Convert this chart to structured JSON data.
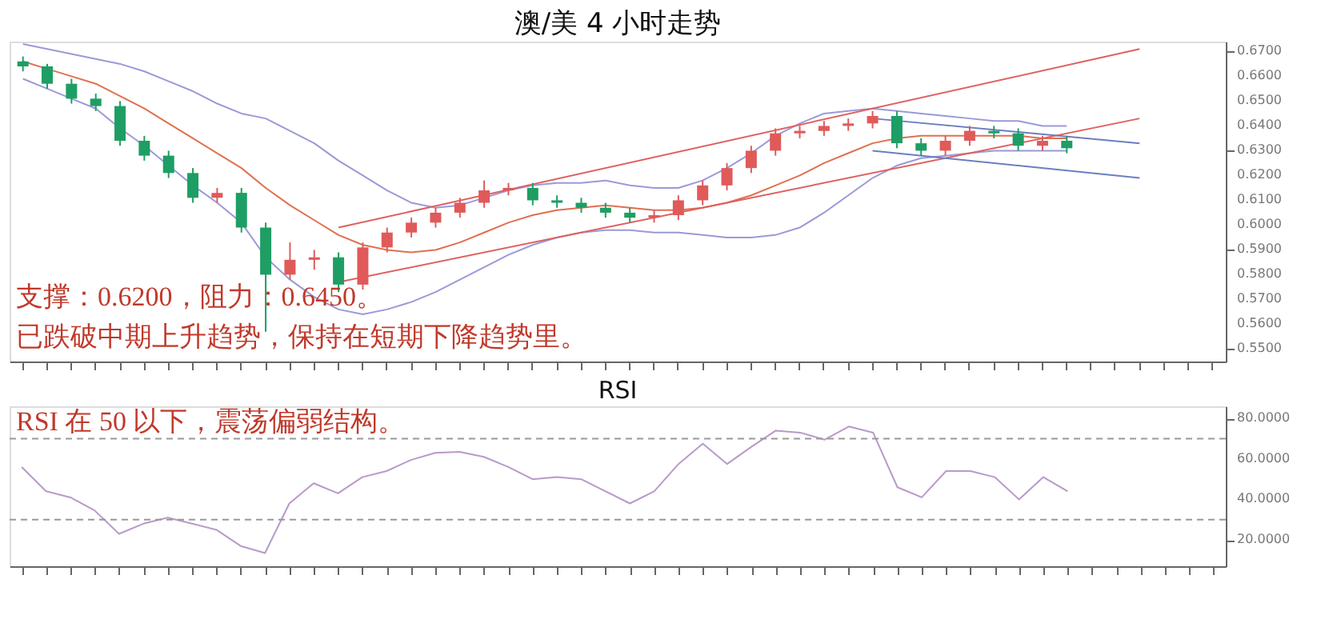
{
  "chart_data": [
    {
      "type": "candlestick",
      "title": "澳/美 4 小时走势",
      "categories": [
        null,
        null,
        null,
        null,
        null,
        null,
        null,
        null,
        null,
        null,
        null,
        null,
        null,
        null,
        null,
        null,
        null,
        null,
        null,
        null,
        null,
        null,
        null,
        null,
        null,
        null,
        null,
        null,
        null,
        null,
        null,
        null,
        null,
        null,
        null,
        null,
        null,
        null,
        null,
        null,
        null,
        null,
        null,
        null,
        null,
        null,
        null,
        null,
        null,
        null
      ],
      "ohlc": [
        [
          0.666,
          0.668,
          0.662,
          0.664
        ],
        [
          0.664,
          0.665,
          0.655,
          0.657
        ],
        [
          0.657,
          0.659,
          0.649,
          0.651
        ],
        [
          0.651,
          0.653,
          0.646,
          0.648
        ],
        [
          0.648,
          0.65,
          0.632,
          0.634
        ],
        [
          0.634,
          0.636,
          0.626,
          0.628
        ],
        [
          0.628,
          0.63,
          0.619,
          0.621
        ],
        [
          0.621,
          0.623,
          0.609,
          0.611
        ],
        [
          0.611,
          0.615,
          0.609,
          0.613
        ],
        [
          0.613,
          0.615,
          0.597,
          0.599
        ],
        [
          0.599,
          0.601,
          0.557,
          0.58
        ],
        [
          0.58,
          0.593,
          0.578,
          0.586
        ],
        [
          0.586,
          0.59,
          0.582,
          0.587
        ],
        [
          0.587,
          0.589,
          0.573,
          0.576
        ],
        [
          0.576,
          0.593,
          0.574,
          0.591
        ],
        [
          0.591,
          0.599,
          0.589,
          0.597
        ],
        [
          0.597,
          0.603,
          0.595,
          0.601
        ],
        [
          0.601,
          0.607,
          0.599,
          0.605
        ],
        [
          0.605,
          0.611,
          0.603,
          0.609
        ],
        [
          0.609,
          0.618,
          0.607,
          0.614
        ],
        [
          0.614,
          0.617,
          0.612,
          0.615
        ],
        [
          0.615,
          0.617,
          0.608,
          0.61
        ],
        [
          0.61,
          0.612,
          0.607,
          0.609
        ],
        [
          0.609,
          0.611,
          0.605,
          0.607
        ],
        [
          0.607,
          0.609,
          0.603,
          0.605
        ],
        [
          0.605,
          0.607,
          0.601,
          0.603
        ],
        [
          0.603,
          0.606,
          0.601,
          0.604
        ],
        [
          0.604,
          0.612,
          0.602,
          0.61
        ],
        [
          0.61,
          0.618,
          0.608,
          0.616
        ],
        [
          0.616,
          0.625,
          0.614,
          0.623
        ],
        [
          0.623,
          0.632,
          0.621,
          0.63
        ],
        [
          0.63,
          0.639,
          0.628,
          0.637
        ],
        [
          0.637,
          0.64,
          0.635,
          0.638
        ],
        [
          0.638,
          0.642,
          0.636,
          0.64
        ],
        [
          0.64,
          0.643,
          0.638,
          0.641
        ],
        [
          0.641,
          0.646,
          0.639,
          0.644
        ],
        [
          0.644,
          0.646,
          0.631,
          0.633
        ],
        [
          0.633,
          0.635,
          0.628,
          0.63
        ],
        [
          0.63,
          0.636,
          0.628,
          0.634
        ],
        [
          0.634,
          0.64,
          0.632,
          0.638
        ],
        [
          0.638,
          0.64,
          0.635,
          0.637
        ],
        [
          0.637,
          0.639,
          0.63,
          0.632
        ],
        [
          0.632,
          0.636,
          0.63,
          0.634
        ],
        [
          0.634,
          0.636,
          0.629,
          0.631
        ],
        null,
        null,
        null,
        null,
        null,
        null
      ],
      "colors": [
        "#1e9e64",
        "#1e9e64",
        "#1e9e64",
        "#1e9e64",
        "#1e9e64",
        "#1e9e64",
        "#1e9e64",
        "#1e9e64",
        "#e05a5a",
        "#1e9e64",
        "#1e9e64",
        "#e05a5a",
        "#e05a5a",
        "#1e9e64",
        "#e05a5a",
        "#e05a5a",
        "#e05a5a",
        "#e05a5a",
        "#e05a5a",
        "#e05a5a",
        "#e05a5a",
        "#1e9e64",
        "#1e9e64",
        "#1e9e64",
        "#1e9e64",
        "#1e9e64",
        "#e05a5a",
        "#e05a5a",
        "#e05a5a",
        "#e05a5a",
        "#e05a5a",
        "#e05a5a",
        "#e05a5a",
        "#e05a5a",
        "#e05a5a",
        "#e05a5a",
        "#1e9e64",
        "#1e9e64",
        "#e05a5a",
        "#e05a5a",
        "#1e9e64",
        "#1e9e64",
        "#e05a5a",
        "#1e9e64",
        null,
        null,
        null,
        null,
        null,
        null
      ],
      "series": [
        {
          "type": "line",
          "color": "#9a9ad8",
          "values": [
            0.673,
            0.671,
            0.669,
            0.667,
            0.665,
            0.662,
            0.658,
            0.654,
            0.649,
            0.645,
            0.643,
            0.638,
            0.633,
            0.626,
            0.62,
            0.614,
            0.609,
            0.607,
            0.608,
            0.611,
            0.614,
            0.616,
            0.617,
            0.617,
            0.618,
            0.616,
            0.615,
            0.615,
            0.618,
            0.623,
            0.629,
            0.636,
            0.641,
            0.645,
            0.646,
            0.647,
            0.646,
            0.645,
            0.644,
            0.643,
            0.642,
            0.642,
            0.64,
            0.64,
            null,
            null,
            null,
            null,
            null,
            null
          ]
        },
        {
          "type": "line",
          "color": "#e07050",
          "values": [
            0.666,
            0.663,
            0.66,
            0.657,
            0.652,
            0.647,
            0.641,
            0.635,
            0.629,
            0.623,
            0.615,
            0.608,
            0.602,
            0.596,
            0.592,
            0.59,
            0.589,
            0.59,
            0.593,
            0.597,
            0.601,
            0.604,
            0.606,
            0.607,
            0.608,
            0.607,
            0.606,
            0.606,
            0.607,
            0.609,
            0.612,
            0.616,
            0.62,
            0.625,
            0.629,
            0.633,
            0.635,
            0.636,
            0.636,
            0.636,
            0.636,
            0.636,
            0.635,
            0.635,
            null,
            null,
            null,
            null,
            null,
            null
          ]
        },
        {
          "type": "line",
          "color": "#9a9ad8",
          "values": [
            0.659,
            0.655,
            0.651,
            0.647,
            0.639,
            0.632,
            0.624,
            0.616,
            0.609,
            0.601,
            0.587,
            0.578,
            0.571,
            0.566,
            0.564,
            0.566,
            0.569,
            0.573,
            0.578,
            0.583,
            0.588,
            0.592,
            0.595,
            0.597,
            0.598,
            0.598,
            0.597,
            0.597,
            0.596,
            0.595,
            0.595,
            0.596,
            0.599,
            0.605,
            0.612,
            0.619,
            0.624,
            0.627,
            0.628,
            0.629,
            0.63,
            0.63,
            0.63,
            0.63,
            null,
            null,
            null,
            null,
            null,
            null
          ]
        },
        {
          "type": "line",
          "color": "#e06060",
          "values": [
            null,
            null,
            null,
            null,
            null,
            null,
            null,
            null,
            null,
            null,
            null,
            null,
            null,
            0.599,
            null,
            null,
            null,
            null,
            null,
            null,
            null,
            null,
            null,
            null,
            null,
            null,
            null,
            null,
            null,
            null,
            null,
            null,
            null,
            null,
            null,
            null,
            null,
            null,
            null,
            null,
            null,
            null,
            null,
            null,
            null,
            null,
            0.671,
            null,
            null,
            null
          ]
        },
        {
          "type": "line",
          "color": "#e06060",
          "values": [
            null,
            null,
            null,
            null,
            null,
            null,
            null,
            null,
            null,
            null,
            null,
            null,
            null,
            0.577,
            null,
            null,
            null,
            null,
            null,
            null,
            null,
            null,
            null,
            null,
            null,
            null,
            null,
            null,
            null,
            null,
            null,
            null,
            null,
            null,
            null,
            null,
            null,
            null,
            null,
            null,
            null,
            null,
            null,
            null,
            null,
            null,
            0.643,
            null,
            null,
            null
          ]
        },
        {
          "type": "line",
          "color": "#6a7fc0",
          "values": [
            null,
            null,
            null,
            null,
            null,
            null,
            null,
            null,
            null,
            null,
            null,
            null,
            null,
            null,
            null,
            null,
            null,
            null,
            null,
            null,
            null,
            null,
            null,
            null,
            null,
            null,
            null,
            null,
            null,
            null,
            null,
            null,
            null,
            null,
            null,
            0.643,
            null,
            null,
            null,
            null,
            null,
            null,
            null,
            null,
            null,
            null,
            0.633,
            null,
            null,
            null
          ]
        },
        {
          "type": "line",
          "color": "#6a7fc0",
          "values": [
            null,
            null,
            null,
            null,
            null,
            null,
            null,
            null,
            null,
            null,
            null,
            null,
            null,
            null,
            null,
            null,
            null,
            null,
            null,
            null,
            null,
            null,
            null,
            null,
            null,
            null,
            null,
            null,
            null,
            null,
            null,
            null,
            null,
            null,
            null,
            0.63,
            null,
            null,
            null,
            null,
            null,
            null,
            null,
            null,
            null,
            null,
            0.619,
            null,
            null,
            null
          ]
        }
      ],
      "ylim": [
        0.545,
        0.674
      ],
      "yticks": [
        {
          "value": 0.55,
          "label": "0.5500"
        },
        {
          "value": 0.56,
          "label": "0.5600"
        },
        {
          "value": 0.57,
          "label": "0.5700"
        },
        {
          "value": 0.58,
          "label": "0.5800"
        },
        {
          "value": 0.59,
          "label": "0.5900"
        },
        {
          "value": 0.6,
          "label": "0.6000"
        },
        {
          "value": 0.61,
          "label": "0.6100"
        },
        {
          "value": 0.62,
          "label": "0.6200"
        },
        {
          "value": 0.63,
          "label": "0.6300"
        },
        {
          "value": 0.64,
          "label": "0.6400"
        },
        {
          "value": 0.65,
          "label": "0.6500"
        },
        {
          "value": 0.66,
          "label": "0.6600"
        },
        {
          "value": 0.67,
          "label": "0.6700"
        }
      ],
      "tick_labels": "y",
      "annotations": [
        "支撑：0.6200，阻力：0.6450。",
        "已跌破中期上升趋势，保持在短期下降趋势里。"
      ]
    },
    {
      "type": "line",
      "title": "RSI",
      "categories": [
        null,
        null,
        null,
        null,
        null,
        null,
        null,
        null,
        null,
        null,
        null,
        null,
        null,
        null,
        null,
        null,
        null,
        null,
        null,
        null,
        null,
        null,
        null,
        null,
        null,
        null,
        null,
        null,
        null,
        null,
        null,
        null,
        null,
        null,
        null,
        null,
        null,
        null,
        null,
        null,
        null,
        null,
        null,
        null,
        null,
        null,
        null,
        null,
        null,
        null
      ],
      "series": [
        {
          "color": "#b89ac8",
          "values": [
            56,
            44,
            41,
            34.5,
            23,
            28,
            31,
            28,
            25,
            17,
            13.5,
            38,
            48,
            43,
            51,
            54,
            59.5,
            63,
            63.5,
            61,
            56,
            50,
            51,
            50,
            44,
            38,
            44,
            57.5,
            67.5,
            57.5,
            66,
            74,
            73,
            69.5,
            76,
            73,
            46,
            41,
            54,
            54,
            51,
            40,
            51,
            44,
            null,
            null,
            null,
            null,
            null,
            null
          ]
        }
      ],
      "ylim": [
        7,
        86
      ],
      "yticks": [
        {
          "value": 20,
          "label": "20.0000"
        },
        {
          "value": 40,
          "label": "40.0000"
        },
        {
          "value": 60,
          "label": "60.0000"
        },
        {
          "value": 80,
          "label": "80.0000"
        }
      ],
      "ref_lines": [
        {
          "axis": "y",
          "value": 70,
          "color": "#999999",
          "line_style": "dashed"
        },
        {
          "axis": "y",
          "value": 30,
          "color": "#999999",
          "line_style": "dashed"
        }
      ],
      "tick_labels": "y",
      "annotations": [
        "RSI 在 50 以下，震荡偏弱结构。"
      ]
    }
  ]
}
